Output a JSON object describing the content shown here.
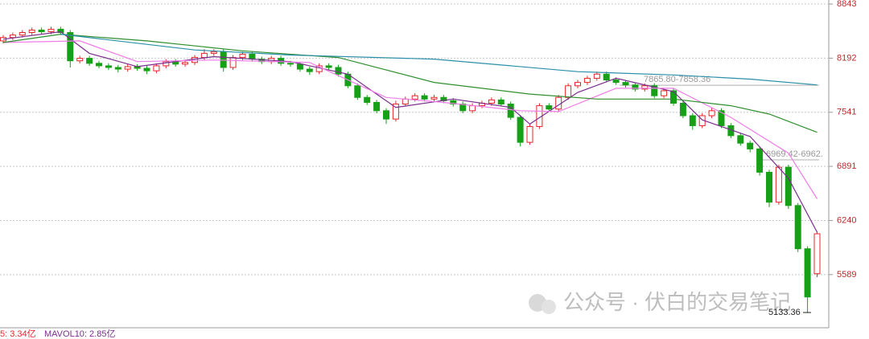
{
  "chart_data": {
    "type": "candlestick",
    "open": [
      8400,
      8440,
      8470,
      8500,
      8530,
      8510,
      8540,
      8500,
      8160,
      8190,
      8130,
      8100,
      8080,
      8060,
      8090,
      8070,
      8040,
      8100,
      8150,
      8120,
      8140,
      8200,
      8250,
      8270,
      8080,
      8200,
      8240,
      8180,
      8150,
      8190,
      8130,
      8120,
      8060,
      8030,
      8100,
      8080,
      8000,
      7860,
      7720,
      7660,
      7560,
      7460,
      7640,
      7700,
      7740,
      7700,
      7720,
      7680,
      7640,
      7560,
      7620,
      7650,
      7690,
      7640,
      7480,
      7180,
      7370,
      7620,
      7580,
      7720,
      7860,
      7900,
      7950,
      8000,
      7930,
      7900,
      7870,
      7820,
      7860,
      7740,
      7800,
      7650,
      7500,
      7380,
      7500,
      7560,
      7380,
      7260,
      7170,
      7100,
      6820,
      6460,
      6880,
      6420,
      5900,
      5600
    ],
    "high": [
      8470,
      8500,
      8530,
      8560,
      8560,
      8570,
      8570,
      8530,
      8220,
      8220,
      8160,
      8130,
      8110,
      8120,
      8120,
      8100,
      8130,
      8180,
      8180,
      8170,
      8230,
      8300,
      8300,
      8300,
      8230,
      8270,
      8270,
      8210,
      8220,
      8220,
      8160,
      8150,
      8090,
      8130,
      8130,
      8110,
      8030,
      7890,
      7750,
      7690,
      7590,
      7680,
      7730,
      7770,
      7770,
      7750,
      7750,
      7710,
      7670,
      7650,
      7680,
      7720,
      7720,
      7670,
      7510,
      7400,
      7650,
      7650,
      7750,
      7890,
      7930,
      7980,
      8030,
      8030,
      7960,
      7930,
      7900,
      7890,
      7890,
      7830,
      7830,
      7680,
      7530,
      7530,
      7600,
      7590,
      7410,
      7290,
      7200,
      7130,
      6850,
      6910,
      6910,
      6450,
      5930,
      6110
    ],
    "low": [
      8370,
      8410,
      8440,
      8470,
      8480,
      8480,
      8470,
      8080,
      8130,
      8100,
      8070,
      8050,
      8020,
      8030,
      8040,
      8000,
      8010,
      8070,
      8090,
      8090,
      8110,
      8170,
      8220,
      8030,
      8050,
      8170,
      8150,
      8120,
      8120,
      8100,
      8090,
      8030,
      7990,
      8000,
      8050,
      7970,
      7830,
      7690,
      7630,
      7530,
      7400,
      7430,
      7610,
      7670,
      7670,
      7670,
      7650,
      7610,
      7530,
      7530,
      7590,
      7620,
      7610,
      7450,
      7130,
      7150,
      7340,
      7550,
      7550,
      7690,
      7830,
      7870,
      7920,
      7900,
      7870,
      7840,
      7790,
      7790,
      7710,
      7710,
      7620,
      7470,
      7330,
      7350,
      7470,
      7350,
      7230,
      7140,
      7060,
      6780,
      6400,
      6430,
      6380,
      5860,
      5133,
      5560
    ],
    "close": [
      8440,
      8470,
      8500,
      8530,
      8510,
      8540,
      8500,
      8160,
      8190,
      8130,
      8100,
      8080,
      8060,
      8090,
      8070,
      8040,
      8100,
      8150,
      8120,
      8140,
      8200,
      8250,
      8270,
      8080,
      8200,
      8240,
      8180,
      8150,
      8190,
      8130,
      8120,
      8060,
      8030,
      8100,
      8080,
      8000,
      7860,
      7720,
      7660,
      7560,
      7460,
      7640,
      7700,
      7740,
      7700,
      7720,
      7680,
      7640,
      7560,
      7620,
      7650,
      7690,
      7640,
      7480,
      7180,
      7370,
      7620,
      7580,
      7720,
      7860,
      7900,
      7950,
      8000,
      7930,
      7900,
      7870,
      7820,
      7860,
      7740,
      7800,
      7650,
      7500,
      7380,
      7500,
      7560,
      7380,
      7260,
      7170,
      7100,
      6820,
      6460,
      6880,
      6420,
      5900,
      5320,
      6080
    ],
    "up_color": "#e8262a",
    "down_color": "#17a017",
    "lines": [
      {
        "color": "#7b2d8e",
        "x": [
          0,
          6,
          9,
          14,
          22,
          30,
          36,
          41,
          47,
          53,
          55,
          60,
          64,
          70,
          73,
          78,
          82,
          85
        ],
        "values": [
          8420,
          8510,
          8250,
          8090,
          8210,
          8150,
          8000,
          7600,
          7700,
          7600,
          7400,
          7780,
          7950,
          7790,
          7450,
          7250,
          6750,
          6100
        ]
      },
      {
        "color": "#f07ce8",
        "x": [
          0,
          8,
          14,
          22,
          32,
          40,
          46,
          54,
          58,
          64,
          70,
          76,
          82,
          85
        ],
        "values": [
          8380,
          8400,
          8150,
          8170,
          8140,
          7720,
          7660,
          7560,
          7550,
          7830,
          7830,
          7480,
          7050,
          6500
        ]
      },
      {
        "color": "#2f8f2f",
        "x": [
          0,
          6,
          15,
          25,
          35,
          45,
          55,
          62,
          70,
          76,
          80,
          85
        ],
        "values": [
          8380,
          8480,
          8400,
          8280,
          8200,
          7900,
          7760,
          7700,
          7700,
          7620,
          7520,
          7300
        ]
      },
      {
        "color": "#2a8fa8",
        "x": [
          6,
          20,
          30,
          45,
          60,
          70,
          78,
          85
        ],
        "values": [
          8480,
          8290,
          8230,
          8180,
          8030,
          7990,
          7940,
          7870
        ]
      }
    ],
    "ylim": [
      4950,
      8843
    ],
    "yticks": [
      8843,
      8192,
      7541,
      6891,
      6240,
      5589
    ],
    "grid": true,
    "annotations": [
      {
        "label": "7865.80-7858.36",
        "value": 7865.8
      },
      {
        "label": "6969.42-6962.",
        "value": 6969.42
      }
    ],
    "low_marker": {
      "label": "5133.36",
      "value": 5133.36
    },
    "volume_labels": [
      "5: 3.34亿",
      "MAVOL10: 2.85亿"
    ],
    "watermark": "公众号 · 伏白的交易笔记"
  }
}
